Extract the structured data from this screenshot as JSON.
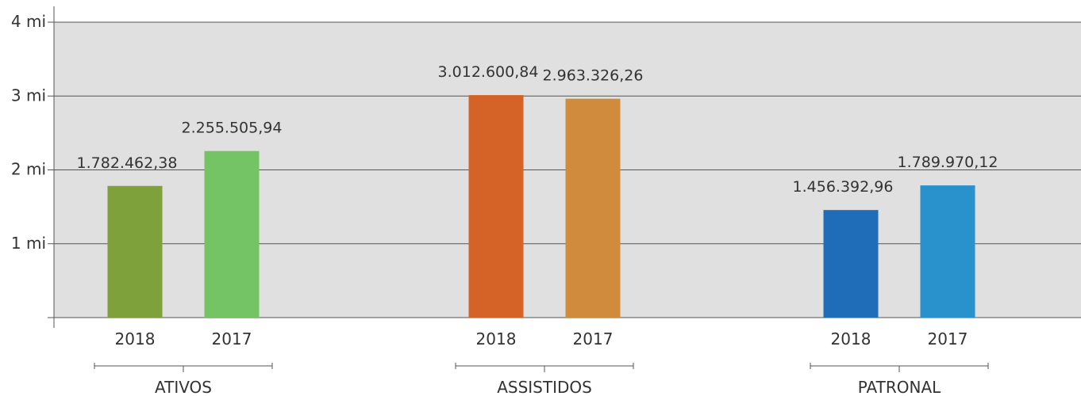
{
  "chart_data": {
    "type": "bar",
    "title": "",
    "xlabel": "",
    "ylabel": "",
    "ylim": [
      0,
      4000000
    ],
    "y_ticks": [
      {
        "value": 1000000,
        "label": "1 mi"
      },
      {
        "value": 2000000,
        "label": "2 mi"
      },
      {
        "value": 3000000,
        "label": "3 mi"
      },
      {
        "value": 4000000,
        "label": "4 mi"
      }
    ],
    "grid": true,
    "plot_background": "#dfe0df",
    "groups": [
      {
        "name": "ATIVOS",
        "bars": [
          {
            "category": "2018",
            "value": 1782462.38,
            "label": "1.782.462,38",
            "color": "#7ea13b"
          },
          {
            "category": "2017",
            "value": 2255505.94,
            "label": "2.255.505,94",
            "color": "#74c365"
          }
        ]
      },
      {
        "name": "ASSISTIDOS",
        "bars": [
          {
            "category": "2018",
            "value": 3012600.84,
            "label": "3.012.600,84",
            "color": "#d56327"
          },
          {
            "category": "2017",
            "value": 2963326.26,
            "label": "2.963.326,26",
            "color": "#d08b3c"
          }
        ]
      },
      {
        "name": "PATRONAL",
        "bars": [
          {
            "category": "2018",
            "value": 1456392.96,
            "label": "1.456.392,96",
            "color": "#1f6db8"
          },
          {
            "category": "2017",
            "value": 1789970.12,
            "label": "1.789.970,12",
            "color": "#2991cc"
          }
        ]
      }
    ]
  }
}
